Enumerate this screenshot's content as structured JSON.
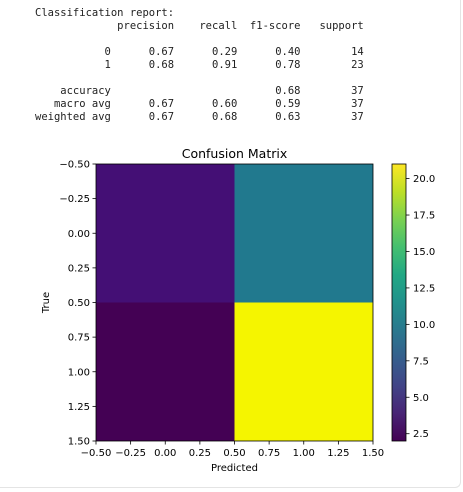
{
  "report": {
    "heading": "Classification report:",
    "columns": [
      "precision",
      "recall",
      "f1-score",
      "support"
    ],
    "rows": [
      {
        "label": "0",
        "precision": "0.67",
        "recall": "0.29",
        "f1": "0.40",
        "support": "14"
      },
      {
        "label": "1",
        "precision": "0.68",
        "recall": "0.91",
        "f1": "0.78",
        "support": "23"
      },
      {
        "label": "",
        "precision": "",
        "recall": "",
        "f1": "",
        "support": ""
      },
      {
        "label": "accuracy",
        "precision": "",
        "recall": "",
        "f1": "0.68",
        "support": "37"
      },
      {
        "label": "macro avg",
        "precision": "0.67",
        "recall": "0.60",
        "f1": "0.59",
        "support": "37"
      },
      {
        "label": "weighted avg",
        "precision": "0.67",
        "recall": "0.68",
        "f1": "0.63",
        "support": "37"
      }
    ]
  },
  "chart_data": {
    "type": "heatmap",
    "title": "Confusion Matrix",
    "xlabel": "Predicted",
    "ylabel": "True",
    "matrix": [
      [
        4,
        10
      ],
      [
        2,
        21
      ]
    ],
    "xlim": [
      -0.5,
      1.5
    ],
    "ylim": [
      1.5,
      -0.5
    ],
    "xticks": [
      "-0.50",
      "-0.25",
      "0.00",
      "0.25",
      "0.50",
      "0.75",
      "1.00",
      "1.25",
      "1.50"
    ],
    "yticks": [
      "-0.50",
      "-0.25",
      "0.00",
      "0.25",
      "0.50",
      "0.75",
      "1.00",
      "1.25",
      "1.50"
    ],
    "colormap": "viridis",
    "colorbar": {
      "min": 2,
      "max": 21,
      "ticks": [
        "2.5",
        "5.0",
        "7.5",
        "10.0",
        "12.5",
        "15.0",
        "17.5",
        "20.0"
      ]
    },
    "cell_colors": [
      [
        "#440f75",
        "#21798e"
      ],
      [
        "#440154",
        "#f5f500"
      ]
    ]
  }
}
